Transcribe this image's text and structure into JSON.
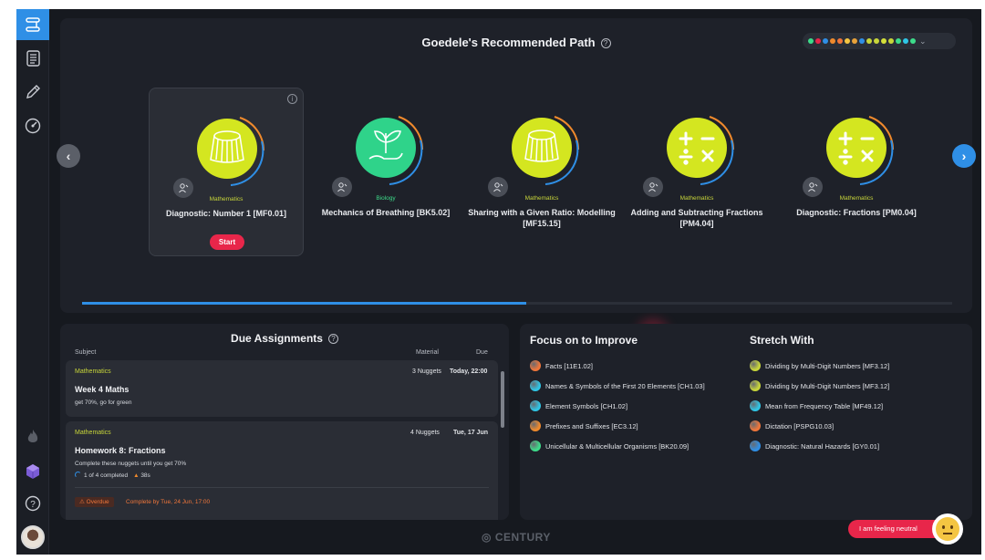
{
  "path": {
    "title": "Goedele's Recommended Path",
    "help_label": "?",
    "dot_colors": [
      "#3ddc8a",
      "#e8264a",
      "#2f8fe6",
      "#f08a2c",
      "#f0763a",
      "#f4c542",
      "#e8a23a",
      "#2f8fe6",
      "#c8d63a",
      "#c8d63a",
      "#d4e03a",
      "#c8d63a",
      "#3ddc8a",
      "#2fc6e6",
      "#3ddc8a"
    ],
    "progress": 0.51,
    "cards": [
      {
        "subject": "Mathematics",
        "name": "Diagnostic: Number 1 [MF0.01]",
        "icon": "jelly-icon",
        "color": "#d4e620",
        "selected": true,
        "start_label": "Start",
        "info_label": "i"
      },
      {
        "subject": "Biology",
        "name": "Mechanics of Breathing [BK5.02]",
        "icon": "plant-hand-icon",
        "color": "#2fd38a"
      },
      {
        "subject": "Mathematics",
        "name": "Sharing with a Given Ratio: Modelling [MF15.15]",
        "icon": "jelly-icon",
        "color": "#d4e620"
      },
      {
        "subject": "Mathematics",
        "name": "Adding and Subtracting Fractions [PM4.04]",
        "icon": "math-operators-icon",
        "color": "#d4e620"
      },
      {
        "subject": "Mathematics",
        "name": "Diagnostic: Fractions [PM0.04]",
        "icon": "math-operators-icon",
        "color": "#d4e620"
      }
    ]
  },
  "due": {
    "title": "Due Assignments",
    "help_label": "?",
    "col_subject": "Subject",
    "col_material": "Material",
    "col_due": "Due",
    "items": [
      {
        "subject": "Mathematics",
        "material": "3 Nuggets",
        "due": "Today, 22:00",
        "name": "Week 4 Maths",
        "desc": "get 70%, go for green"
      },
      {
        "subject": "Mathematics",
        "material": "4 Nuggets",
        "due": "Tue, 17 Jun",
        "name": "Homework 8: Fractions",
        "desc": "Complete these nuggets until you get 70%",
        "completed": "1 of 4 completed",
        "streak": "38s",
        "overdue_label": "Overdue",
        "complete_by": "Complete by Tue, 24 Jun, 17:00"
      }
    ]
  },
  "focus": {
    "title": "Focus on to Improve",
    "items": [
      {
        "label": "Facts [11E1.02]",
        "color": "#f0763a"
      },
      {
        "label": "Names & Symbols of the First 20 Elements [CH1.03]",
        "color": "#2fc6e6"
      },
      {
        "label": "Element Symbols [CH1.02]",
        "color": "#2fc6e6"
      },
      {
        "label": "Prefixes and Suffixes [EC3.12]",
        "color": "#f08a2c"
      },
      {
        "label": "Unicellular & Multicellular Organisms [BK20.09]",
        "color": "#3ddc8a"
      }
    ]
  },
  "stretch": {
    "title": "Stretch With",
    "items": [
      {
        "label": "Dividing by Multi-Digit Numbers [MF3.12]",
        "color": "#c8d63a"
      },
      {
        "label": "Dividing by Multi-Digit Numbers [MF3.12]",
        "color": "#c8d63a"
      },
      {
        "label": "Mean from Frequency Table [MF49.12]",
        "color": "#2fc6e6"
      },
      {
        "label": "Dictation [PSPG10.03]",
        "color": "#f0763a"
      },
      {
        "label": "Diagnostic: Natural Hazards [GY0.01]",
        "color": "#2f8fe6"
      }
    ]
  },
  "footer": {
    "logo": "CENTURY",
    "mood_label": "I am feeling neutral"
  }
}
